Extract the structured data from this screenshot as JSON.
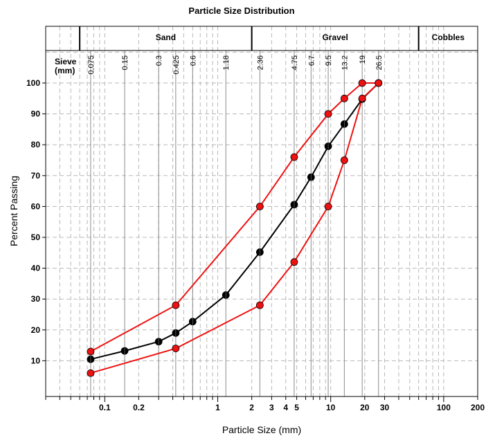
{
  "chart_data": {
    "type": "line",
    "title": "Particle Size Distribution",
    "xlabel": "Particle Size (mm)",
    "ylabel": "Percent Passing",
    "x_scale": "log",
    "xlim": [
      0.03,
      200
    ],
    "ylim": [
      0,
      110
    ],
    "x_ticks": [
      {
        "value": 0.1,
        "label": "0.1"
      },
      {
        "value": 0.2,
        "label": "0.2"
      },
      {
        "value": 1,
        "label": "1"
      },
      {
        "value": 2,
        "label": "2"
      },
      {
        "value": 3,
        "label": "3"
      },
      {
        "value": 4,
        "label": "4"
      },
      {
        "value": 5,
        "label": "5"
      },
      {
        "value": 10,
        "label": "10"
      },
      {
        "value": 20,
        "label": "20"
      },
      {
        "value": 30,
        "label": "30"
      },
      {
        "value": 100,
        "label": "100"
      },
      {
        "value": 200,
        "label": "200"
      }
    ],
    "y_ticks": [
      10,
      20,
      30,
      40,
      50,
      60,
      70,
      80,
      90,
      100
    ],
    "sieve_header": "Sieve\n(mm)",
    "sieves": [
      {
        "value": 0.075,
        "label": "0.075"
      },
      {
        "value": 0.15,
        "label": "0.15"
      },
      {
        "value": 0.3,
        "label": "0.3"
      },
      {
        "value": 0.425,
        "label": "0.425"
      },
      {
        "value": 0.6,
        "label": "0.6"
      },
      {
        "value": 1.18,
        "label": "1.18"
      },
      {
        "value": 2.36,
        "label": "2.36"
      },
      {
        "value": 4.75,
        "label": "4.75"
      },
      {
        "value": 6.7,
        "label": "6.7"
      },
      {
        "value": 9.5,
        "label": "9.5"
      },
      {
        "value": 13.2,
        "label": "13.2"
      },
      {
        "value": 19,
        "label": "19"
      },
      {
        "value": 26.5,
        "label": "26.5"
      }
    ],
    "zones": [
      {
        "label": "Sand",
        "from": 0.06,
        "to": 2
      },
      {
        "label": "Gravel",
        "from": 2,
        "to": 60
      },
      {
        "label": "Cobbles",
        "from": 60,
        "to": 200
      }
    ],
    "grid": true,
    "series": [
      {
        "color": "#ee1111",
        "points": [
          [
            0.075,
            13
          ],
          [
            0.425,
            28
          ],
          [
            2.36,
            60
          ],
          [
            4.75,
            76
          ],
          [
            9.5,
            90
          ],
          [
            13.2,
            95
          ],
          [
            19,
            100
          ],
          [
            26.5,
            100
          ]
        ]
      },
      {
        "color": "#000000",
        "points": [
          [
            0.075,
            10.5
          ],
          [
            0.15,
            13.2
          ],
          [
            0.3,
            16.2
          ],
          [
            0.425,
            19
          ],
          [
            0.6,
            22.7
          ],
          [
            1.18,
            31.3
          ],
          [
            2.36,
            45.2
          ],
          [
            4.75,
            60.6
          ],
          [
            6.7,
            69.5
          ],
          [
            9.5,
            79.5
          ],
          [
            13.2,
            86.7
          ],
          [
            19,
            94.8
          ],
          [
            26.5,
            100
          ]
        ]
      },
      {
        "color": "#ee1111",
        "points": [
          [
            0.075,
            6
          ],
          [
            0.425,
            14
          ],
          [
            2.36,
            28
          ],
          [
            4.75,
            42
          ],
          [
            9.5,
            60
          ],
          [
            13.2,
            75
          ],
          [
            19,
            95
          ],
          [
            26.5,
            100
          ]
        ]
      }
    ]
  }
}
